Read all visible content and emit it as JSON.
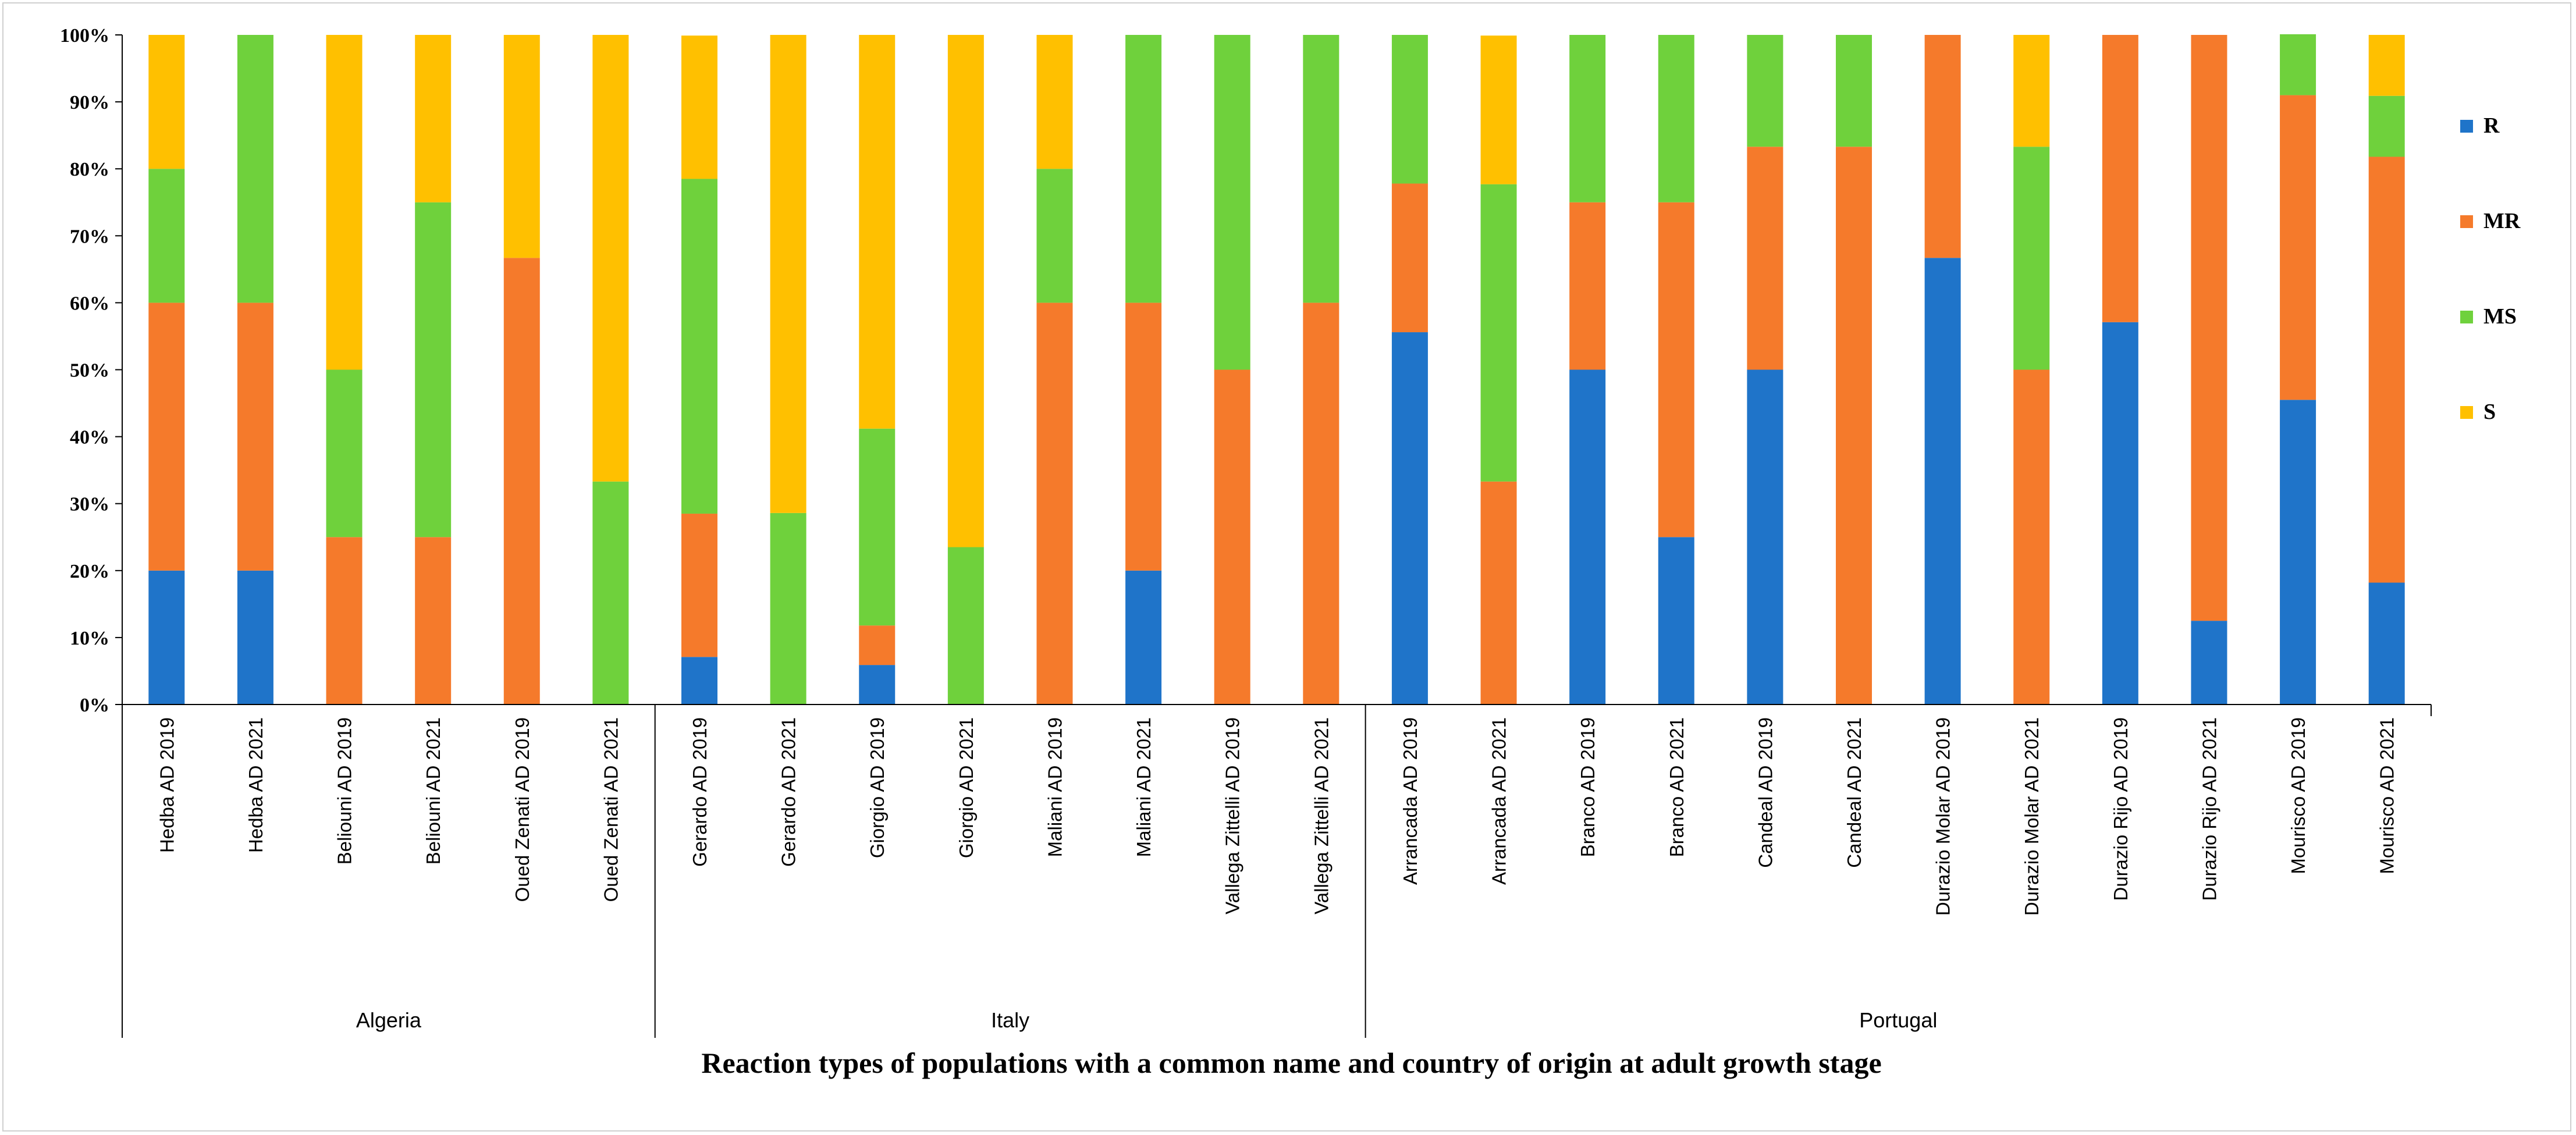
{
  "chart_data": {
    "type": "bar",
    "stacked": "percent",
    "title": "Reaction types of populations with a common name and country of origin at adult growth stage",
    "xlabel": "",
    "ylabel": "",
    "ylim": [
      0,
      100
    ],
    "yticks": [
      "0%",
      "10%",
      "20%",
      "30%",
      "40%",
      "50%",
      "60%",
      "70%",
      "80%",
      "90%",
      "100%"
    ],
    "legend_position": "right",
    "colors": {
      "R": "#1f74c9",
      "MR": "#f57a2b",
      "MS": "#6fd13c",
      "S": "#ffc000"
    },
    "categories": [
      "Hedba AD 2019",
      "Hedba AD 2021",
      "Beliouni AD 2019",
      "Beliouni AD 2021",
      "Oued Zenati AD 2019",
      "Oued Zenati AD 2021",
      "Gerardo AD 2019",
      "Gerardo AD 2021",
      "Giorgio AD 2019",
      "Giorgio AD 2021",
      "Maliani AD 2019",
      "Maliani AD 2021",
      "Vallega Zittelli  AD 2019",
      "Vallega Zittelli  AD 2021",
      "Arrancada AD 2019",
      "Arrancada AD 2021",
      "Branco AD 2019",
      "Branco AD 2021",
      "Candeal AD 2019",
      "Candeal AD 2021",
      "Durazio Molar AD 2019",
      "Durazio Molar AD 2021",
      "Durazio Rijo AD 2019",
      "Durazio Rijo AD 2021",
      "Mourisco AD 2019",
      "Mourisco AD 2021"
    ],
    "groups": [
      {
        "name": "Algeria",
        "start": 0,
        "end": 5
      },
      {
        "name": "Italy",
        "start": 6,
        "end": 13
      },
      {
        "name": "Portugal",
        "start": 14,
        "end": 25
      }
    ],
    "series": [
      {
        "name": "R",
        "values": [
          20,
          20,
          0,
          0,
          0,
          0,
          7.1,
          0,
          5.9,
          0,
          0,
          20,
          0,
          0,
          55.6,
          0,
          50,
          25,
          50,
          0,
          66.7,
          0,
          57.1,
          12.5,
          45.5,
          18.2
        ]
      },
      {
        "name": "MR",
        "values": [
          40,
          40,
          25,
          25,
          66.7,
          0,
          21.4,
          0,
          5.9,
          0,
          60,
          40,
          50,
          60,
          22.2,
          33.3,
          25,
          50,
          33.3,
          83.3,
          33.3,
          50,
          42.9,
          87.5,
          45.5,
          63.6
        ]
      },
      {
        "name": "MS",
        "values": [
          20,
          40,
          25,
          50,
          0,
          33.3,
          50,
          28.6,
          29.4,
          23.5,
          20,
          40,
          50,
          40,
          22.2,
          44.4,
          25,
          25,
          16.7,
          16.7,
          0,
          33.3,
          0,
          0,
          9.1,
          9.1
        ]
      },
      {
        "name": "S",
        "values": [
          20,
          0,
          50,
          25,
          33.3,
          66.7,
          21.4,
          71.4,
          58.8,
          76.5,
          20,
          0,
          0,
          0,
          0,
          22.2,
          0,
          0,
          0,
          0,
          0,
          16.7,
          0,
          0,
          0,
          9.1
        ]
      }
    ]
  }
}
